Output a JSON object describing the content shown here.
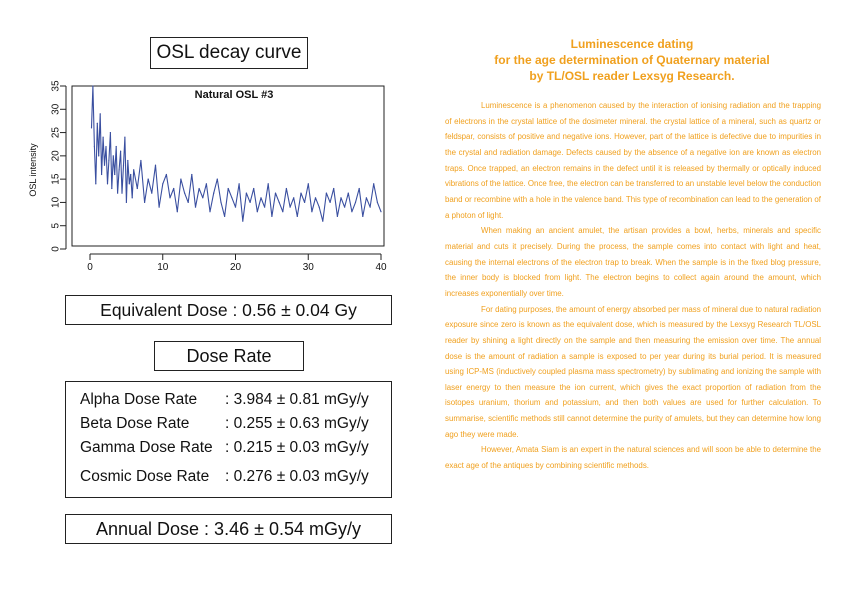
{
  "left": {
    "decay_title": "OSL decay curve",
    "equivalent_dose": "Equivalent Dose : 0.56 ± 0.04 Gy",
    "dose_rate_title": "Dose Rate",
    "dose_rates": [
      {
        "label": "Alpha Dose Rate",
        "value": ": 3.984 ± 0.81 mGy/y"
      },
      {
        "label": "Beta Dose Rate",
        "value": ": 0.255 ± 0.63 mGy/y"
      },
      {
        "label": "Gamma Dose Rate",
        "value": ": 0.215 ± 0.03 mGy/y"
      },
      {
        "label": "Cosmic Dose Rate",
        "value": ": 0.276 ± 0.03 mGy/y"
      }
    ],
    "annual_dose": "Annual Dose : 3.46 ± 0.54 mGy/y"
  },
  "chart_data": {
    "type": "line",
    "title": "Natural OSL #3",
    "xlabel": "",
    "ylabel": "OSL intensity",
    "xlim": [
      0,
      40
    ],
    "ylim": [
      0,
      35
    ],
    "xticks": [
      0,
      10,
      20,
      30,
      40
    ],
    "yticks": [
      0,
      5,
      10,
      15,
      20,
      25,
      30,
      35
    ],
    "grid": false,
    "legend": "none",
    "series_color": "#3a4fa0",
    "x": [
      0.2,
      0.4,
      0.6,
      0.8,
      1,
      1.2,
      1.4,
      1.6,
      1.8,
      2,
      2.2,
      2.4,
      2.6,
      2.8,
      3,
      3.2,
      3.4,
      3.6,
      3.8,
      4,
      4.2,
      4.4,
      4.6,
      4.8,
      5,
      5.2,
      5.4,
      5.6,
      5.8,
      6,
      6.5,
      7,
      7.5,
      8,
      8.5,
      9,
      9.5,
      10,
      10.5,
      11,
      11.5,
      12,
      12.5,
      13,
      13.5,
      14,
      14.5,
      15,
      15.5,
      16,
      16.5,
      17,
      17.5,
      18,
      18.5,
      19,
      19.5,
      20,
      20.5,
      21,
      21.5,
      22,
      22.5,
      23,
      23.5,
      24,
      24.5,
      25,
      25.5,
      26,
      26.5,
      27,
      27.5,
      28,
      28.5,
      29,
      29.5,
      30,
      30.5,
      31,
      31.5,
      32,
      32.5,
      33,
      33.5,
      34,
      34.5,
      35,
      35.5,
      36,
      36.5,
      37,
      37.5,
      38,
      38.5,
      39,
      39.5,
      40
    ],
    "values": [
      26,
      35,
      22,
      14,
      27,
      20,
      29,
      16,
      24,
      18,
      22,
      14,
      19,
      25,
      13,
      20,
      16,
      22,
      12,
      17,
      21,
      12,
      18,
      24,
      10,
      19,
      14,
      16,
      11,
      17,
      13,
      19,
      10,
      15,
      12,
      18,
      9,
      14,
      16,
      11,
      13,
      8,
      15,
      12,
      10,
      16,
      9,
      13,
      11,
      14,
      8,
      12,
      15,
      10,
      7,
      13,
      11,
      9,
      14,
      6,
      12,
      10,
      13,
      8,
      11,
      9,
      14,
      7,
      12,
      10,
      8,
      13,
      9,
      11,
      7,
      12,
      10,
      14,
      8,
      11,
      9,
      6,
      12,
      10,
      13,
      7,
      11,
      9,
      12,
      8,
      10,
      13,
      7,
      11,
      9,
      14,
      10,
      8
    ]
  },
  "article": {
    "heading_lines": [
      "Luminescence dating",
      "for the age determination of Quaternary material",
      "by TL/OSL reader Lexsyg Research."
    ],
    "paragraphs": [
      "Luminescence is a phenomenon caused by the interaction of ionising radiation and the trapping of electrons in the crystal lattice of the dosimeter mineral. the crystal lattice of a mineral, such as quartz or feldspar, consists of positive and negative ions. However, part of the lattice is defective due to impurities in the crystal and radiation damage. Defects caused by the absence of a negative ion are known as electron traps. Once trapped, an electron remains in the defect until it is released by thermally or optically induced vibrations of the lattice. Once free, the electron can be transferred to an unstable level below the conduction band or recombine with a hole in the valence band. This type of recombination can lead to the generation of a photon of light.",
      "When making an ancient amulet, the artisan provides a bowl, herbs, minerals and specific material and cuts it precisely. During the process, the sample comes into contact with light and heat, causing the internal electrons of the electron trap to break. When the sample is in the fixed blog pressure, the inner body is blocked from light. The electron begins to collect again around the amount, which increases exponentially over time.",
      "For dating purposes, the amount of energy absorbed per mass of mineral due to natural radiation exposure since zero is known as the equivalent dose, which is measured by the Lexsyg Research TL/OSL reader by shining a light directly on the sample and then measuring the emission over time. The annual dose is the amount of radiation a sample is exposed to per year during its burial period. It is measured using ICP-MS (inductively coupled plasma mass spectrometry) by sublimating and ionizing the sample with laser energy to then measure the ion current, which gives the exact proportion of radiation from the isotopes uranium, thorium and potassium, and then both values are used for further calculation. To summarise, scientific methods still cannot determine the purity of amulets, but they can determine how long ago they were made.",
      "However, Amata Siam is an expert in the natural sciences and will soon be able to determine the exact age of the antiques by combining scientific methods."
    ]
  }
}
